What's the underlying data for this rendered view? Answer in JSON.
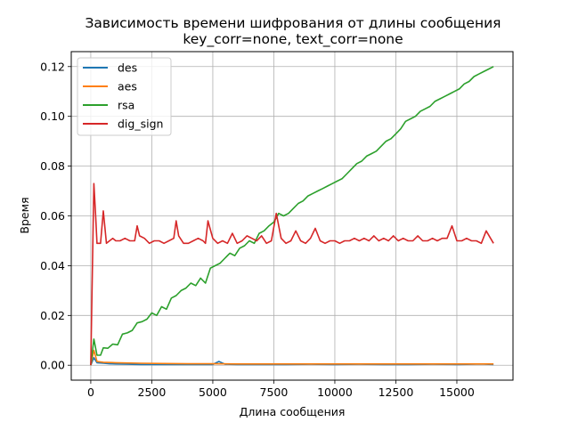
{
  "chart_data": {
    "type": "line",
    "title": "Зависимость времени шифрования от длины сообщения",
    "subtitle": "key_corr=none, text_corr=none",
    "xlabel": "Длина сообщения",
    "ylabel": "Время",
    "xlim": [
      -800,
      17300
    ],
    "ylim": [
      -0.006,
      0.126
    ],
    "xticks": [
      0,
      2500,
      5000,
      7500,
      10000,
      12500,
      15000
    ],
    "yticks": [
      0.0,
      0.02,
      0.04,
      0.06,
      0.08,
      0.1,
      0.12
    ],
    "xtick_labels": [
      "0",
      "2500",
      "5000",
      "7500",
      "10000",
      "12500",
      "15000"
    ],
    "ytick_labels": [
      "0.00",
      "0.02",
      "0.04",
      "0.06",
      "0.08",
      "0.10",
      "0.12"
    ],
    "grid": true,
    "legend_position": "top-left",
    "series": [
      {
        "name": "des",
        "color": "#1f77b4",
        "x": [
          0,
          128,
          256,
          512,
          768,
          1024,
          1536,
          2048,
          3072,
          4096,
          5000,
          5250,
          5500,
          6000,
          7000,
          8000,
          9000,
          10000,
          11000,
          12000,
          13000,
          14000,
          15000,
          16000,
          16500
        ],
        "y": [
          0.0,
          0.003,
          0.001,
          0.0008,
          0.0006,
          0.0005,
          0.0004,
          0.0003,
          0.0003,
          0.0003,
          0.0003,
          0.0015,
          0.0004,
          0.0003,
          0.0003,
          0.0003,
          0.0004,
          0.0003,
          0.0004,
          0.0003,
          0.0003,
          0.0004,
          0.0003,
          0.0005,
          0.0003
        ]
      },
      {
        "name": "aes",
        "color": "#ff7f0e",
        "x": [
          0,
          128,
          256,
          512,
          1024,
          2048,
          3000,
          4000,
          5000,
          6000,
          7000,
          8000,
          9000,
          10000,
          11000,
          12000,
          13000,
          14000,
          15000,
          16000,
          16500
        ],
        "y": [
          0.0,
          0.006,
          0.0015,
          0.0012,
          0.001,
          0.0008,
          0.0007,
          0.0006,
          0.0006,
          0.0005,
          0.0005,
          0.0005,
          0.0005,
          0.0005,
          0.0005,
          0.0005,
          0.0005,
          0.0005,
          0.0005,
          0.0005,
          0.0005
        ]
      },
      {
        "name": "rsa",
        "color": "#2ca02c",
        "x": [
          0,
          128,
          256,
          400,
          512,
          700,
          900,
          1100,
          1300,
          1500,
          1700,
          1900,
          2100,
          2300,
          2500,
          2700,
          2900,
          3100,
          3300,
          3500,
          3700,
          3900,
          4100,
          4300,
          4500,
          4700,
          4900,
          5100,
          5300,
          5500,
          5700,
          5900,
          6100,
          6300,
          6500,
          6700,
          6900,
          7100,
          7300,
          7500,
          7700,
          7900,
          8100,
          8300,
          8500,
          8700,
          8900,
          9100,
          9300,
          9500,
          9700,
          9900,
          10100,
          10300,
          10500,
          10700,
          10900,
          11100,
          11300,
          11500,
          11700,
          11900,
          12100,
          12300,
          12500,
          12700,
          12900,
          13100,
          13300,
          13500,
          13700,
          13900,
          14100,
          14300,
          14500,
          14700,
          14900,
          15100,
          15300,
          15500,
          15700,
          15900,
          16100,
          16300,
          16500
        ],
        "y": [
          0.0,
          0.0105,
          0.004,
          0.004,
          0.007,
          0.0068,
          0.0085,
          0.0082,
          0.0125,
          0.013,
          0.014,
          0.017,
          0.0175,
          0.0185,
          0.021,
          0.02,
          0.0235,
          0.0225,
          0.027,
          0.028,
          0.03,
          0.031,
          0.033,
          0.032,
          0.035,
          0.033,
          0.039,
          0.04,
          0.041,
          0.043,
          0.045,
          0.044,
          0.047,
          0.048,
          0.05,
          0.049,
          0.053,
          0.054,
          0.056,
          0.0575,
          0.061,
          0.06,
          0.061,
          0.063,
          0.065,
          0.066,
          0.068,
          0.069,
          0.07,
          0.071,
          0.072,
          0.073,
          0.074,
          0.075,
          0.077,
          0.079,
          0.081,
          0.082,
          0.084,
          0.085,
          0.086,
          0.088,
          0.09,
          0.091,
          0.093,
          0.095,
          0.098,
          0.099,
          0.1,
          0.102,
          0.103,
          0.104,
          0.106,
          0.107,
          0.108,
          0.109,
          0.11,
          0.111,
          0.113,
          0.114,
          0.116,
          0.117,
          0.118,
          0.119,
          0.12
        ]
      },
      {
        "name": "dig_sign",
        "color": "#d62728",
        "x": [
          0,
          128,
          200,
          256,
          400,
          512,
          640,
          768,
          900,
          1024,
          1200,
          1400,
          1600,
          1800,
          1900,
          2000,
          2200,
          2400,
          2600,
          2800,
          3000,
          3200,
          3400,
          3500,
          3600,
          3800,
          4000,
          4200,
          4400,
          4600,
          4700,
          4800,
          5000,
          5200,
          5400,
          5600,
          5800,
          6000,
          6200,
          6400,
          6600,
          6800,
          7000,
          7200,
          7400,
          7600,
          7800,
          8000,
          8200,
          8400,
          8600,
          8800,
          9000,
          9200,
          9400,
          9600,
          9800,
          10000,
          10200,
          10400,
          10600,
          10800,
          11000,
          11200,
          11400,
          11600,
          11800,
          12000,
          12200,
          12400,
          12600,
          12800,
          13000,
          13200,
          13400,
          13600,
          13800,
          14000,
          14200,
          14400,
          14600,
          14800,
          15000,
          15200,
          15400,
          15600,
          15800,
          16000,
          16200,
          16500
        ],
        "y": [
          0.0,
          0.073,
          0.06,
          0.049,
          0.049,
          0.062,
          0.049,
          0.05,
          0.051,
          0.05,
          0.05,
          0.051,
          0.05,
          0.05,
          0.056,
          0.052,
          0.051,
          0.049,
          0.05,
          0.05,
          0.049,
          0.05,
          0.051,
          0.058,
          0.052,
          0.049,
          0.049,
          0.05,
          0.051,
          0.05,
          0.049,
          0.058,
          0.051,
          0.049,
          0.05,
          0.049,
          0.053,
          0.049,
          0.05,
          0.052,
          0.051,
          0.05,
          0.052,
          0.049,
          0.05,
          0.061,
          0.051,
          0.049,
          0.05,
          0.054,
          0.05,
          0.049,
          0.051,
          0.055,
          0.05,
          0.049,
          0.05,
          0.05,
          0.049,
          0.05,
          0.05,
          0.051,
          0.05,
          0.051,
          0.05,
          0.052,
          0.05,
          0.051,
          0.05,
          0.052,
          0.05,
          0.051,
          0.05,
          0.05,
          0.052,
          0.05,
          0.05,
          0.051,
          0.05,
          0.051,
          0.051,
          0.056,
          0.05,
          0.05,
          0.051,
          0.05,
          0.05,
          0.049,
          0.054,
          0.049
        ]
      }
    ]
  }
}
